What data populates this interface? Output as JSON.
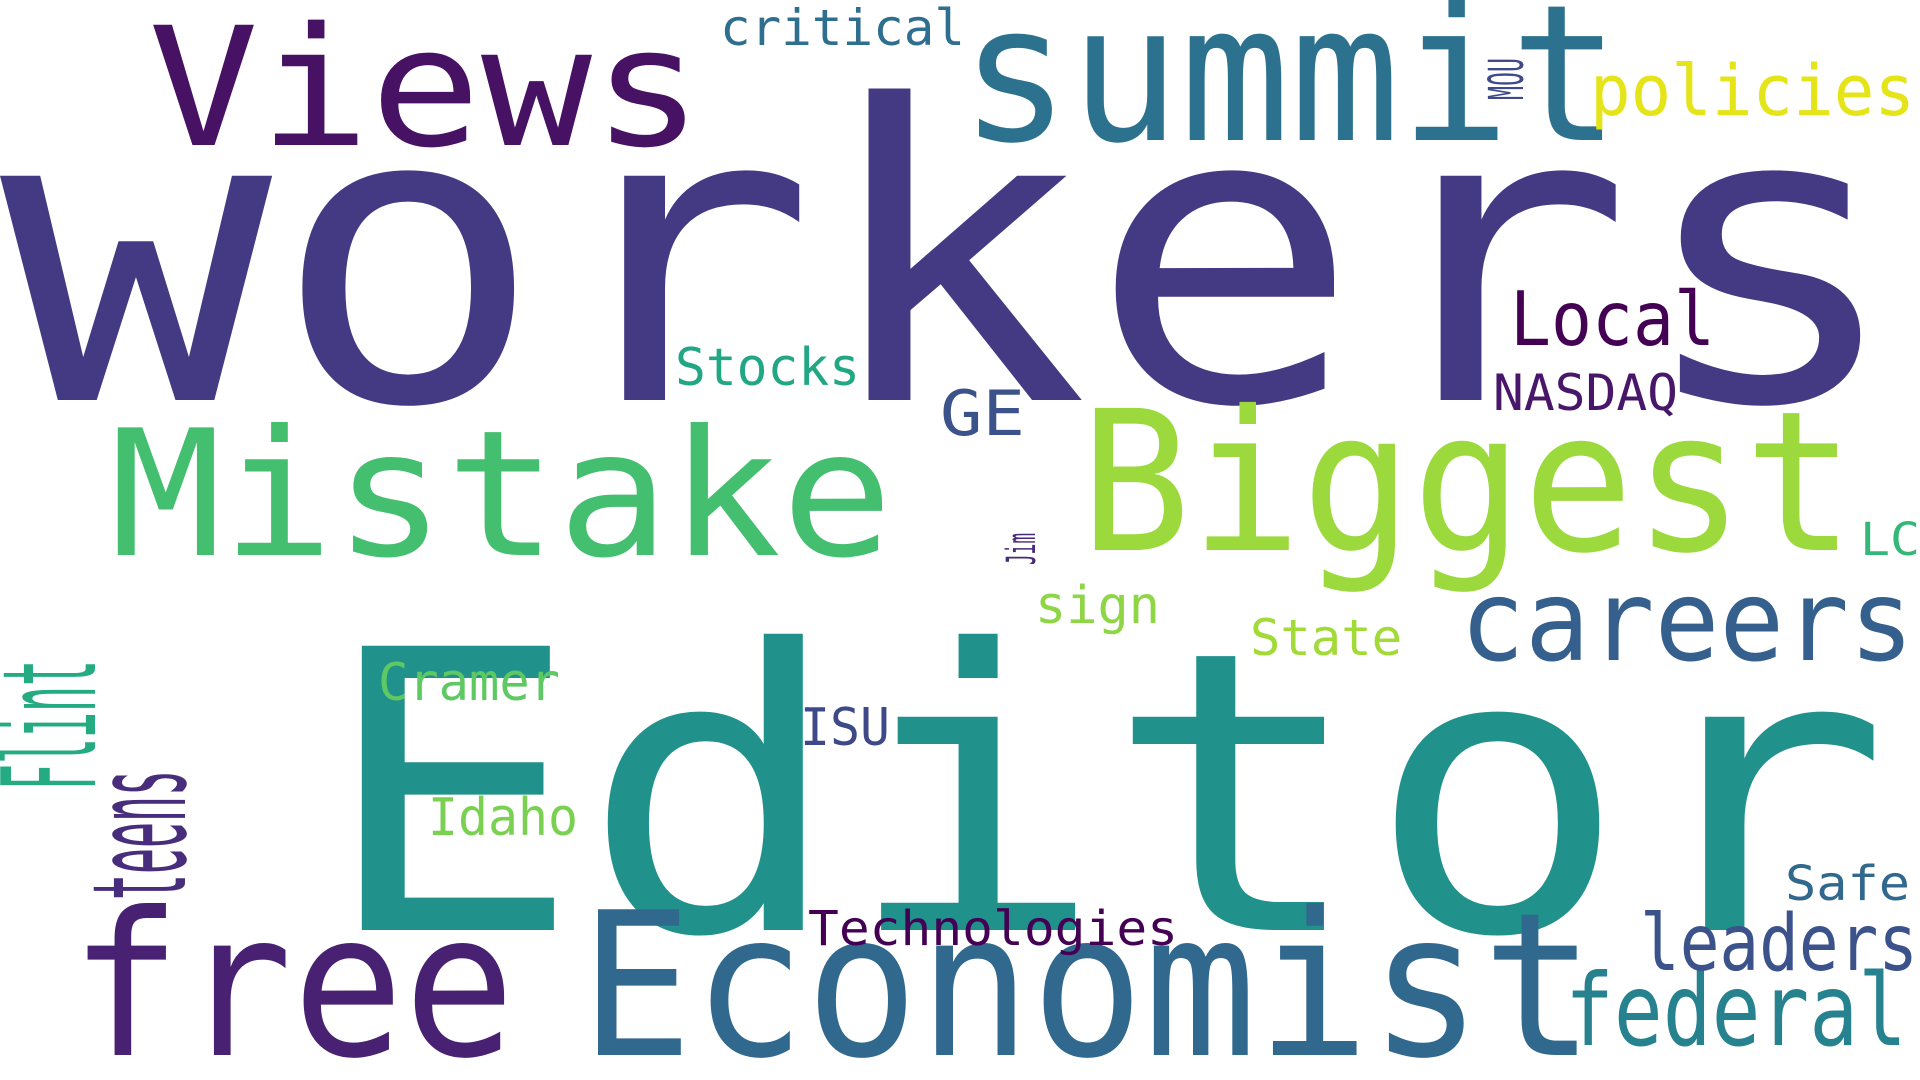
{
  "words": [
    {
      "text": "workers",
      "color": "#443983"
    },
    {
      "text": "Editor",
      "color": "#21918c"
    },
    {
      "text": "Biggest",
      "color": "#9bd93c"
    },
    {
      "text": "Mistake",
      "color": "#44bf70"
    },
    {
      "text": "summit",
      "color": "#2c728e"
    },
    {
      "text": "Views",
      "color": "#471164"
    },
    {
      "text": "free",
      "color": "#482173"
    },
    {
      "text": "Economist",
      "color": "#31688e"
    },
    {
      "text": "careers",
      "color": "#355f8d"
    },
    {
      "text": "teens",
      "color": "#472d7b"
    },
    {
      "text": "Flint",
      "color": "#25ab82"
    },
    {
      "text": "federal",
      "color": "#26828e"
    },
    {
      "text": "leaders",
      "color": "#3b528b"
    },
    {
      "text": "policies",
      "color": "#e5e419"
    },
    {
      "text": "Local",
      "color": "#440154"
    },
    {
      "text": "critical",
      "color": "#2e6e8e"
    },
    {
      "text": "MOU",
      "color": "#3e4a89"
    },
    {
      "text": "Stocks",
      "color": "#22a785"
    },
    {
      "text": "GE",
      "color": "#3b528b"
    },
    {
      "text": "NASDAQ",
      "color": "#481769"
    },
    {
      "text": "Jim",
      "color": "#482878"
    },
    {
      "text": "sign",
      "color": "#8ed645"
    },
    {
      "text": "State",
      "color": "#a2da37"
    },
    {
      "text": "LC",
      "color": "#35b779"
    },
    {
      "text": "Cramer",
      "color": "#5ec962"
    },
    {
      "text": "ISU",
      "color": "#3e4989"
    },
    {
      "text": "Idaho",
      "color": "#7ad151"
    },
    {
      "text": "Safe",
      "color": "#31688e"
    },
    {
      "text": "Technologies",
      "color": "#440154"
    }
  ]
}
